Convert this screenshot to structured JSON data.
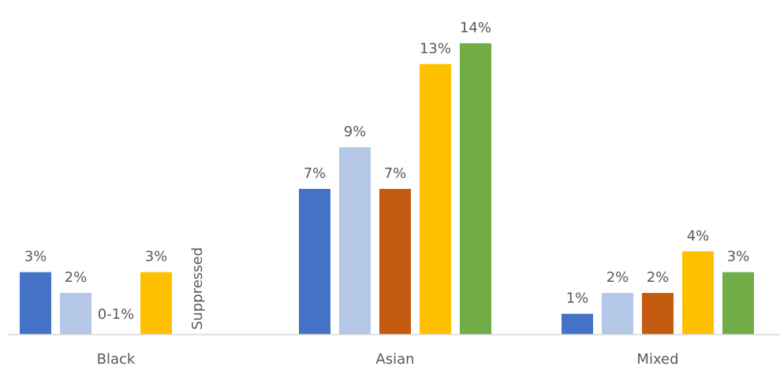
{
  "chart_data": {
    "type": "bar",
    "categories": [
      "Black",
      "Asian",
      "Mixed"
    ],
    "series": [
      {
        "color": "#4472C4",
        "values": [
          3,
          7,
          1
        ],
        "labels": [
          "3%",
          "7%",
          "1%"
        ]
      },
      {
        "color": "#B4C7E7",
        "values": [
          2,
          9,
          2
        ],
        "labels": [
          "2%",
          "9%",
          "2%"
        ]
      },
      {
        "color": "#C55A11",
        "values": [
          0,
          7,
          2
        ],
        "labels": [
          "0-1%",
          "7%",
          "2%"
        ]
      },
      {
        "color": "#FFC000",
        "values": [
          3,
          13,
          4
        ],
        "labels": [
          "3%",
          "13%",
          "4%"
        ]
      },
      {
        "color": "#70AD47",
        "values": [
          null,
          14,
          3
        ],
        "labels": [
          "Suppressed",
          "14%",
          "3%"
        ]
      }
    ],
    "ylim": [
      0,
      14.3
    ],
    "grid": false,
    "legend": "none"
  }
}
